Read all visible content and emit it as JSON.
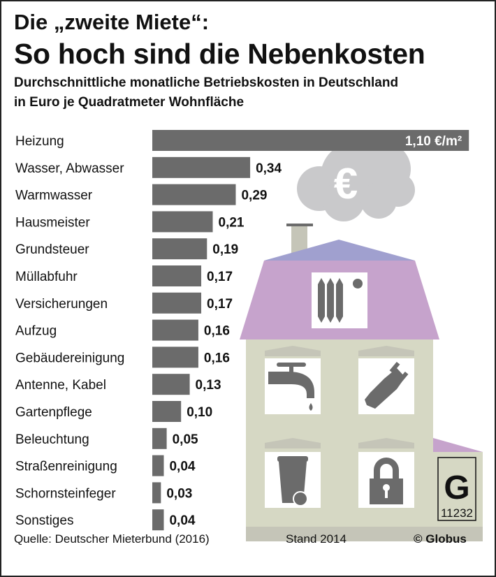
{
  "header": {
    "kicker": "Die „zweite Miete“:",
    "title": "So hoch sind die Nebenkosten",
    "subtitle_line1": "Durchschnittliche monatliche Betriebskosten in Deutschland",
    "subtitle_line2": "in Euro je Quadratmeter Wohnfläche"
  },
  "chart_data": {
    "type": "bar",
    "orientation": "horizontal",
    "title": "So hoch sind die Nebenkosten",
    "categories": [
      "Heizung",
      "Wasser, Abwasser",
      "Warmwasser",
      "Hausmeister",
      "Grundsteuer",
      "Müllabfuhr",
      "Versicherungen",
      "Aufzug",
      "Gebäudereinigung",
      "Antenne, Kabel",
      "Gartenpflege",
      "Beleuchtung",
      "Straßenreinigung",
      "Schornsteinfeger",
      "Sonstiges"
    ],
    "values": [
      1.1,
      0.34,
      0.29,
      0.21,
      0.19,
      0.17,
      0.17,
      0.16,
      0.16,
      0.13,
      0.1,
      0.05,
      0.04,
      0.03,
      0.04
    ],
    "labels": [
      "1,10 €/m²",
      "0,34",
      "0,29",
      "0,21",
      "0,19",
      "0,17",
      "0,17",
      "0,16",
      "0,16",
      "0,13",
      "0,10",
      "0,05",
      "0,04",
      "0,03",
      "0,04"
    ],
    "unit": "€/m²",
    "bar_color": "#6b6b6b",
    "grid": false
  },
  "illustration": {
    "cloud_symbol": "€",
    "badge_number": "11232",
    "colors": {
      "roof_top": "#a0a0cf",
      "roof": "#c6a3cc",
      "wall": "#d6d8c4",
      "base": "#c5c5b8",
      "icon": "#6b6b6b",
      "cloud": "#c9c9cb"
    }
  },
  "footer": {
    "source": "Quelle: Deutscher Mieterbund (2016)",
    "date": "Stand 2014",
    "brand": "© Globus"
  }
}
